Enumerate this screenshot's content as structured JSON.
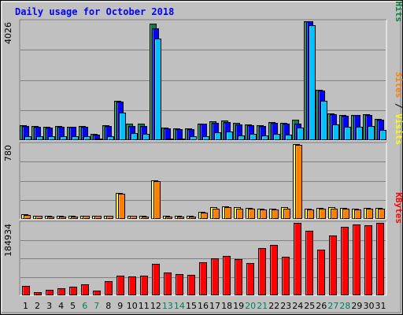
{
  "chart_data": {
    "type": "bar",
    "title": "Daily usage for October 2018",
    "categories": [
      "1",
      "2",
      "3",
      "4",
      "5",
      "6",
      "7",
      "8",
      "9",
      "10",
      "11",
      "12",
      "13",
      "14",
      "15",
      "16",
      "17",
      "18",
      "19",
      "20",
      "21",
      "22",
      "23",
      "24",
      "25",
      "26",
      "27",
      "28",
      "29",
      "30",
      "31"
    ],
    "weekend_days": [
      "6",
      "7",
      "13",
      "14",
      "20",
      "21",
      "27",
      "28"
    ],
    "panels": [
      {
        "id": "pages-files-hits",
        "ymax": 4026,
        "ymax_label": "4026",
        "grid": true,
        "side_label": [
          {
            "text": "Pages",
            "color": "#00c0ff"
          },
          {
            "text": " / ",
            "color": "#000000"
          },
          {
            "text": "Files",
            "color": "#0000ff"
          },
          {
            "text": " / ",
            "color": "#000000"
          },
          {
            "text": "Hits",
            "color": "#008040"
          }
        ],
        "series": [
          {
            "name": "Hits",
            "color": "#008040",
            "values": [
              500,
              470,
              440,
              470,
              460,
              480,
              200,
              500,
              1320,
              560,
              550,
              3940,
              420,
              400,
              400,
              560,
              640,
              660,
              580,
              520,
              500,
              600,
              580,
              690,
              4020,
              1700,
              900,
              860,
              860,
              870,
              710
            ]
          },
          {
            "name": "Files",
            "color": "#0000ff",
            "values": [
              480,
              450,
              420,
              450,
              440,
              460,
              190,
              480,
              1300,
              490,
              480,
              3780,
              400,
              380,
              380,
              550,
              590,
              620,
              540,
              500,
              480,
              580,
              560,
              550,
              4020,
              1680,
              880,
              820,
              840,
              860,
              690
            ]
          },
          {
            "name": "Pages",
            "color": "#00c0ff",
            "values": [
              140,
              130,
              120,
              130,
              120,
              130,
              60,
              140,
              920,
              250,
              220,
              3450,
              60,
              60,
              120,
              140,
              260,
              280,
              160,
              200,
              150,
              200,
              180,
              420,
              3900,
              1320,
              540,
              450,
              450,
              470,
              350
            ]
          }
        ]
      },
      {
        "id": "visits-sites",
        "ymax": 780,
        "ymax_label": "780",
        "grid": true,
        "side_label": [
          {
            "text": "Sites",
            "color": "#ff8000"
          },
          {
            "text": " / ",
            "color": "#000000"
          },
          {
            "text": "Visits",
            "color": "#ffff00"
          }
        ],
        "series": [
          {
            "name": "Visits",
            "color": "#ffff00",
            "values": [
              50,
              35,
              33,
              30,
              32,
              35,
              35,
              35,
              270,
              35,
              30,
              400,
              30,
              30,
              30,
              70,
              120,
              130,
              120,
              115,
              110,
              110,
              120,
              780,
              110,
              115,
              120,
              115,
              110,
              115,
              115
            ]
          },
          {
            "name": "Sites",
            "color": "#ff8000",
            "values": [
              40,
              30,
              28,
              25,
              27,
              30,
              30,
              30,
              265,
              30,
              25,
              390,
              25,
              25,
              25,
              65,
              110,
              120,
              110,
              110,
              100,
              100,
              110,
              770,
              100,
              110,
              110,
              105,
              100,
              110,
              110
            ]
          }
        ]
      },
      {
        "id": "kbytes",
        "ymax": 184934,
        "ymax_label": "184934",
        "grid": true,
        "side_label": [
          {
            "text": "KBytes",
            "color": "#ff0000"
          }
        ],
        "series": [
          {
            "name": "KBytes",
            "color": "#ff0000",
            "values": [
              24000,
              8000,
              14000,
              18000,
              22000,
              28000,
              12000,
              36000,
              50000,
              48000,
              50000,
              80000,
              58000,
              54000,
              52000,
              84000,
              94000,
              100000,
              92000,
              82000,
              120000,
              128000,
              98000,
              184000,
              164000,
              116000,
              152000,
              174000,
              180000,
              178000,
              184000
            ]
          }
        ]
      }
    ]
  }
}
